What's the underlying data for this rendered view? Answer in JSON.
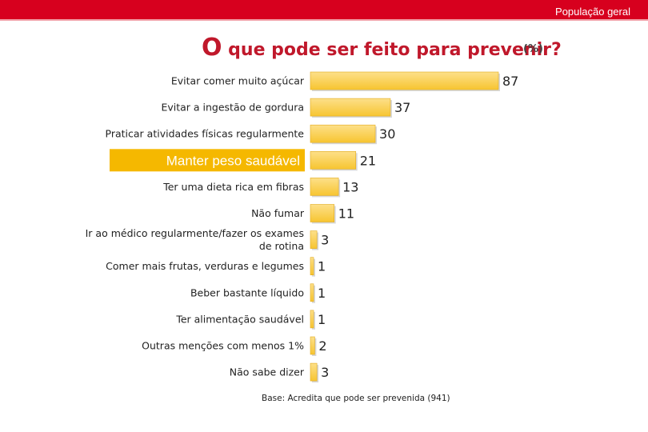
{
  "header": {
    "label": "População geral"
  },
  "title": {
    "first_letter": "O",
    "rest": " que pode ser feito para prevenir?"
  },
  "unit_label": "(%)",
  "base_note": "Base: Acredita que pode ser prevenida (941)",
  "colors": {
    "bar": "#f7c531",
    "bar_light": "#fde08a",
    "highlight": "#f5b800",
    "header": "#d7001e",
    "title": "#c0182b"
  },
  "chart_data": {
    "type": "bar",
    "orientation": "horizontal",
    "categories": [
      [
        "Evitar comer muito açúcar"
      ],
      [
        "Evitar a ingestão de gordura"
      ],
      [
        "Praticar atividades físicas regularmente"
      ],
      [
        "Manter peso saudável"
      ],
      [
        "Ter uma dieta rica em fibras"
      ],
      [
        "Não fumar"
      ],
      [
        "Ir ao médico regularmente/fazer os exames",
        "de rotina"
      ],
      [
        "Comer mais frutas, verduras e legumes"
      ],
      [
        "Beber bastante líquido"
      ],
      [
        "Ter alimentação saudável"
      ],
      [
        "Outras menções com menos 1%"
      ],
      [
        "Não sabe dizer"
      ]
    ],
    "values": [
      87,
      37,
      30,
      21,
      13,
      11,
      3,
      1,
      1,
      1,
      2,
      3
    ],
    "highlighted_category": "Manter peso saudável",
    "xlim": [
      0,
      87
    ],
    "grid": false,
    "legend": "none"
  }
}
